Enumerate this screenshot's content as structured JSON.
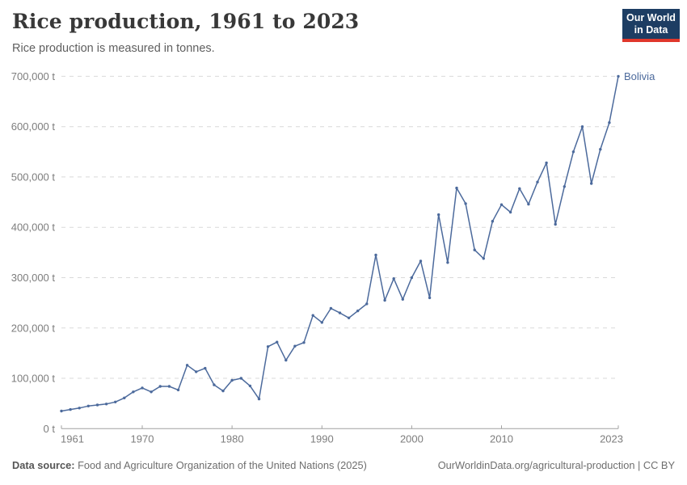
{
  "header": {
    "title": "Rice production, 1961 to 2023",
    "subtitle": "Rice production is measured in tonnes."
  },
  "logo": {
    "line1": "Our World",
    "line2": "in Data"
  },
  "colors": {
    "line": "#4C6A9C",
    "logo_bg": "#1d3d63",
    "logo_bar": "#e0372b",
    "grid": "#d9d9d9",
    "axis": "#a1a1a1"
  },
  "chart_data": {
    "type": "line",
    "title": "Rice production, 1961 to 2023",
    "unit": "t",
    "ylabel": "",
    "xlabel": "",
    "grid": "horizontal-dashed",
    "legend": "line-end-label",
    "ylim": [
      0,
      700000
    ],
    "x": [
      1961,
      1962,
      1963,
      1964,
      1965,
      1966,
      1967,
      1968,
      1969,
      1970,
      1971,
      1972,
      1973,
      1974,
      1975,
      1976,
      1977,
      1978,
      1979,
      1980,
      1981,
      1982,
      1983,
      1984,
      1985,
      1986,
      1987,
      1988,
      1989,
      1990,
      1991,
      1992,
      1993,
      1994,
      1995,
      1996,
      1997,
      1998,
      1999,
      2000,
      2001,
      2002,
      2003,
      2004,
      2005,
      2006,
      2007,
      2008,
      2009,
      2010,
      2011,
      2012,
      2013,
      2014,
      2015,
      2016,
      2017,
      2018,
      2019,
      2020,
      2021,
      2022,
      2023
    ],
    "series": [
      {
        "name": "Bolivia",
        "color": "#4C6A9C",
        "values": [
          35000,
          38000,
          41000,
          45000,
          47000,
          49000,
          53000,
          61000,
          73000,
          81000,
          73000,
          84000,
          84000,
          77000,
          126000,
          113000,
          120000,
          87000,
          75000,
          96000,
          100000,
          85000,
          59000,
          163000,
          172000,
          136000,
          164000,
          171000,
          225000,
          211000,
          239000,
          230000,
          220000,
          234000,
          248000,
          345000,
          255000,
          298000,
          257000,
          300000,
          333000,
          260000,
          425000,
          330000,
          478000,
          447000,
          355000,
          338000,
          412000,
          445000,
          430000,
          477000,
          446000,
          490000,
          528000,
          406000,
          481000,
          550000,
          600000,
          487000,
          555000,
          608000,
          700000
        ]
      }
    ],
    "yticks": [
      {
        "value": 0,
        "label": "0 t"
      },
      {
        "value": 100000,
        "label": "100,000 t"
      },
      {
        "value": 200000,
        "label": "200,000 t"
      },
      {
        "value": 300000,
        "label": "300,000 t"
      },
      {
        "value": 400000,
        "label": "400,000 t"
      },
      {
        "value": 500000,
        "label": "500,000 t"
      },
      {
        "value": 600000,
        "label": "600,000 t"
      },
      {
        "value": 700000,
        "label": "700,000 t"
      }
    ],
    "xticks": [
      {
        "value": 1961,
        "label": "1961"
      },
      {
        "value": 1970,
        "label": "1970"
      },
      {
        "value": 1980,
        "label": "1980"
      },
      {
        "value": 1990,
        "label": "1990"
      },
      {
        "value": 2000,
        "label": "2000"
      },
      {
        "value": 2010,
        "label": "2010"
      },
      {
        "value": 2023,
        "label": "2023"
      }
    ]
  },
  "footer": {
    "source_label": "Data source:",
    "source_text": " Food and Agriculture Organization of the United Nations (2025)",
    "credit": "OurWorldinData.org/agricultural-production | CC BY"
  }
}
